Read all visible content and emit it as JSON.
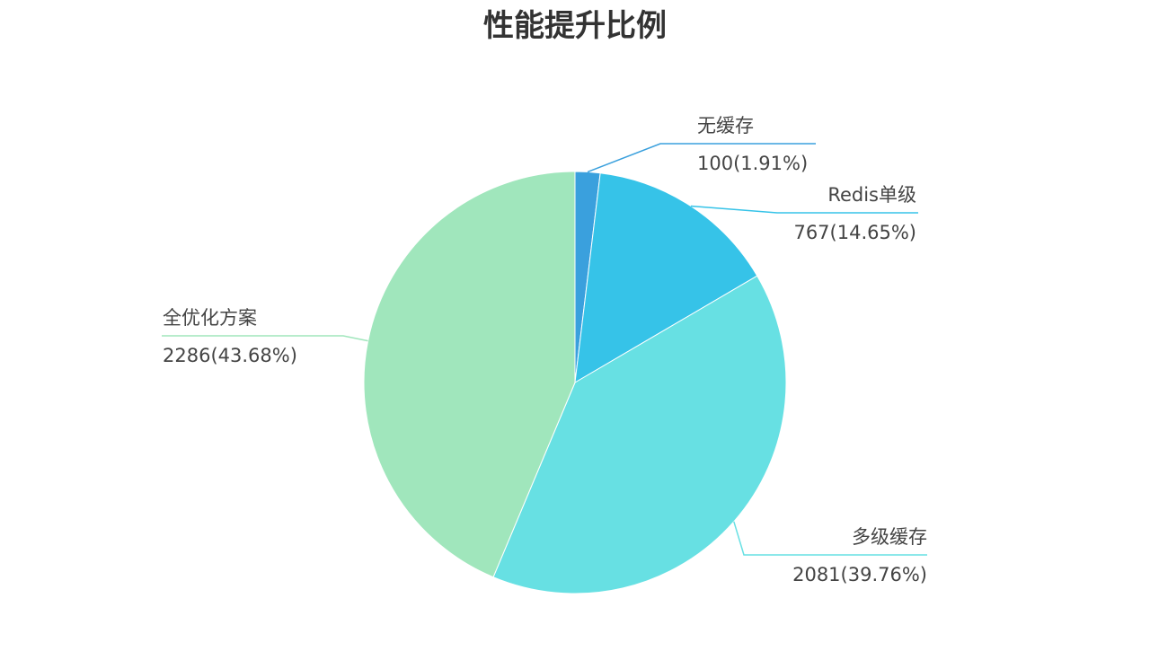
{
  "chart_data": {
    "type": "pie",
    "title": "性能提升比例",
    "series": [
      {
        "slices": [
          {
            "name": "无缓存",
            "value": 100,
            "percent_label": "100(1.91%)",
            "color": "#3aa0dd"
          },
          {
            "name": "Redis单级",
            "value": 767,
            "percent_label": "767(14.65%)",
            "color": "#36c3e8"
          },
          {
            "name": "多级缓存",
            "value": 2081,
            "percent_label": "2081(39.76%)",
            "color": "#67e0e3"
          },
          {
            "name": "全优化方案",
            "value": 2286,
            "percent_label": "2286(43.68%)",
            "color": "#a0e6bc"
          }
        ]
      }
    ],
    "start_angle": "12 o'clock",
    "direction": "clockwise",
    "legend": "none"
  }
}
